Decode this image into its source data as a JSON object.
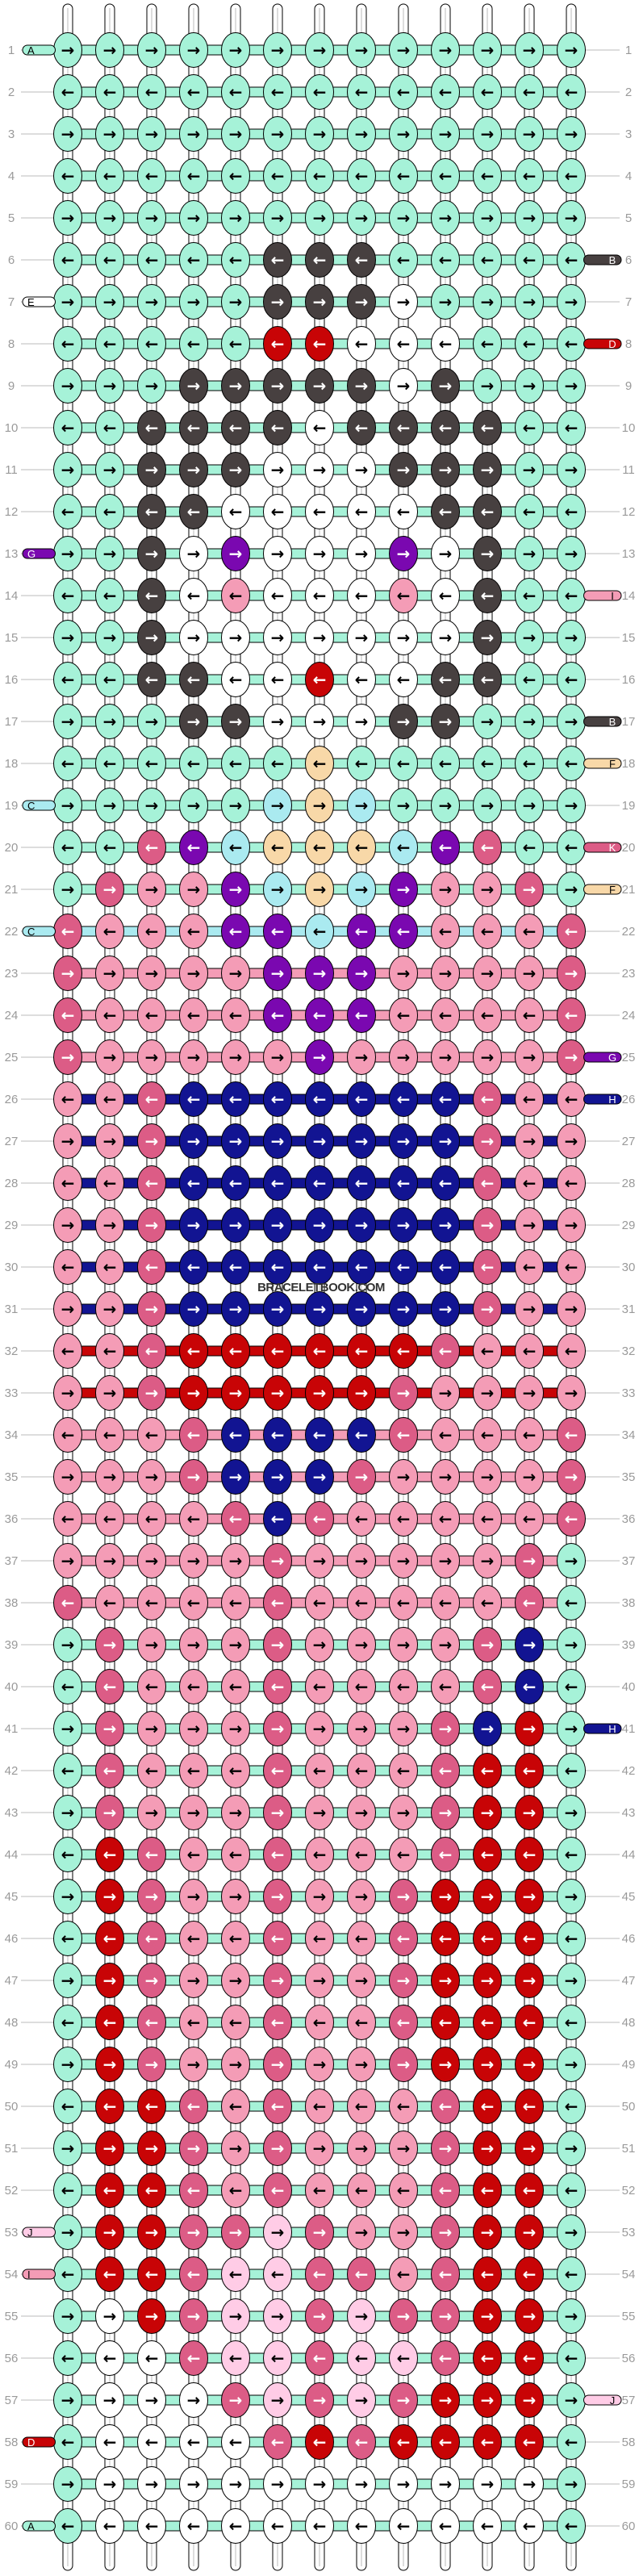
{
  "watermark": "BRACELETBOOK.COM",
  "colors": {
    "A": "#a6f2d8",
    "B": "#474040",
    "C": "#aaeaf0",
    "D": "#c80406",
    "E": "#ffffff",
    "F": "#f8d8a8",
    "G": "#7a08b0",
    "H": "#121492",
    "I": "#f49cb6",
    "J": "#ffcce6",
    "K": "#dc5c86"
  },
  "dark_colors": [
    "B",
    "D",
    "G",
    "H",
    "K"
  ],
  "left_labels": [
    {
      "row": 1,
      "letter": "A"
    },
    {
      "row": 7,
      "letter": "E"
    },
    {
      "row": 13,
      "letter": "G"
    },
    {
      "row": 19,
      "letter": "C"
    },
    {
      "row": 22,
      "letter": "C"
    },
    {
      "row": 53,
      "letter": "J"
    },
    {
      "row": 54,
      "letter": "I"
    },
    {
      "row": 58,
      "letter": "D"
    },
    {
      "row": 60,
      "letter": "A"
    }
  ],
  "right_labels": [
    {
      "row": 6,
      "letter": "B"
    },
    {
      "row": 8,
      "letter": "D"
    },
    {
      "row": 14,
      "letter": "I"
    },
    {
      "row": 17,
      "letter": "B"
    },
    {
      "row": 18,
      "letter": "F"
    },
    {
      "row": 20,
      "letter": "K"
    },
    {
      "row": 21,
      "letter": "F"
    },
    {
      "row": 25,
      "letter": "G"
    },
    {
      "row": 26,
      "letter": "H"
    },
    {
      "row": 41,
      "letter": "H"
    },
    {
      "row": 57,
      "letter": "J"
    }
  ],
  "rows": [
    {
      "number": "1",
      "knots": "AAAAAAAAAAAAA",
      "direction": "right",
      "bar": "A"
    },
    {
      "number": "2",
      "knots": "AAAAAAAAAAAAA",
      "direction": "left",
      "bar": "A"
    },
    {
      "number": "3",
      "knots": "AAAAAAAAAAAAA",
      "direction": "right",
      "bar": "A"
    },
    {
      "number": "4",
      "knots": "AAAAAAAAAAAAA",
      "direction": "left",
      "bar": "A"
    },
    {
      "number": "5",
      "knots": "AAAAAAAAAAAAA",
      "direction": "right",
      "bar": "A"
    },
    {
      "number": "6",
      "knots": "AAAAABBBAAAAA",
      "direction": "left",
      "bar": "A"
    },
    {
      "number": "7",
      "knots": "AAAAABBBEAAAA",
      "direction": "right",
      "bar": "A"
    },
    {
      "number": "8",
      "knots": "AAAAADDEEEAAA",
      "direction": "left",
      "bar": "A"
    },
    {
      "number": "9",
      "knots": "AAABBBBBEBAAA",
      "direction": "right",
      "bar": "A"
    },
    {
      "number": "10",
      "knots": "AABBBBEBBBBAA",
      "direction": "left",
      "bar": "A"
    },
    {
      "number": "11",
      "knots": "AABBBEEEBBBAA",
      "direction": "right",
      "bar": "A"
    },
    {
      "number": "12",
      "knots": "AABBEEEEEBBAA",
      "direction": "left",
      "bar": "A"
    },
    {
      "number": "13",
      "knots": "AABEGEEEGEBAA",
      "direction": "right",
      "bar": "A"
    },
    {
      "number": "14",
      "knots": "AABEIEEEIEBAA",
      "direction": "left",
      "bar": "A"
    },
    {
      "number": "15",
      "knots": "AABEEEEEEEBAA",
      "direction": "right",
      "bar": "A"
    },
    {
      "number": "16",
      "knots": "AABBEEDEEBBAA",
      "direction": "left",
      "bar": "A"
    },
    {
      "number": "17",
      "knots": "AAABBEEEBBAAA",
      "direction": "right",
      "bar": "A"
    },
    {
      "number": "18",
      "knots": "AAAAAAFAAAAAA",
      "direction": "left",
      "bar": "A"
    },
    {
      "number": "19",
      "knots": "AAAAACFCAAAAA",
      "direction": "right",
      "bar": "A"
    },
    {
      "number": "20",
      "knots": "AAKGCFFFCGKAA",
      "direction": "left",
      "bar": "A"
    },
    {
      "number": "21",
      "knots": "AKIIGCFCGIIKA",
      "direction": "right",
      "bar": "A"
    },
    {
      "number": "22",
      "knots": "KIIIGGCGGIIIK",
      "direction": "left",
      "bar": "C"
    },
    {
      "number": "23",
      "knots": "KIIIIGGGIIIIK",
      "direction": "right",
      "bar": "I"
    },
    {
      "number": "24",
      "knots": "KIIIIGGGIIIIK",
      "direction": "left",
      "bar": "I"
    },
    {
      "number": "25",
      "knots": "KIIIIIGIIIIIK",
      "direction": "right",
      "bar": "I"
    },
    {
      "number": "26",
      "knots": "IIKHHHHHHHKII",
      "direction": "left",
      "bar": "H"
    },
    {
      "number": "27",
      "knots": "IIKHHHHHHHKII",
      "direction": "right",
      "bar": "H"
    },
    {
      "number": "28",
      "knots": "IIKHHHHHHHKII",
      "direction": "left",
      "bar": "H"
    },
    {
      "number": "29",
      "knots": "IIKHHHHHHHKII",
      "direction": "right",
      "bar": "H"
    },
    {
      "number": "30",
      "knots": "IIKHHHHHHHKII",
      "direction": "left",
      "bar": "H"
    },
    {
      "number": "31",
      "knots": "IIKHHHHHHHKII",
      "direction": "right",
      "bar": "H"
    },
    {
      "number": "32",
      "knots": "IIKDDDDDDKIII",
      "direction": "left",
      "bar": "D"
    },
    {
      "number": "33",
      "knots": "IIKDDDDDKIIII",
      "direction": "right",
      "bar": "D"
    },
    {
      "number": "34",
      "knots": "IIIKHHHHKIIIK",
      "direction": "left",
      "bar": "I"
    },
    {
      "number": "35",
      "knots": "IIIKHHHKIIIIK",
      "direction": "right",
      "bar": "I"
    },
    {
      "number": "36",
      "knots": "IIIIKHKIIIIIK",
      "direction": "left",
      "bar": "I"
    },
    {
      "number": "37",
      "knots": "IIIIIKIIIIIKA",
      "direction": "right",
      "bar": "I"
    },
    {
      "number": "38",
      "knots": "KIIIIKIIIIIKA",
      "direction": "left",
      "bar": "I"
    },
    {
      "number": "39",
      "knots": "AKIIIKIIIIKHA",
      "direction": "right",
      "bar": "A"
    },
    {
      "number": "40",
      "knots": "AKIIIKIIIIKHA",
      "direction": "left",
      "bar": "A"
    },
    {
      "number": "41",
      "knots": "AKIIIKIIIKHDA",
      "direction": "right",
      "bar": "A"
    },
    {
      "number": "42",
      "knots": "AKIIIKIIIKDDA",
      "direction": "left",
      "bar": "A"
    },
    {
      "number": "43",
      "knots": "AKIIIKIIIKDDA",
      "direction": "right",
      "bar": "A"
    },
    {
      "number": "44",
      "knots": "ADKIIKIIIKDDA",
      "direction": "left",
      "bar": "A"
    },
    {
      "number": "45",
      "knots": "ADKIIKIIKDDDA",
      "direction": "right",
      "bar": "A"
    },
    {
      "number": "46",
      "knots": "ADKIIKIIKDDDA",
      "direction": "left",
      "bar": "A"
    },
    {
      "number": "47",
      "knots": "ADKIIKIIKDDDA",
      "direction": "right",
      "bar": "A"
    },
    {
      "number": "48",
      "knots": "ADKIIKIIKDDDA",
      "direction": "left",
      "bar": "A"
    },
    {
      "number": "49",
      "knots": "ADKIIKIIKDDDA",
      "direction": "right",
      "bar": "A"
    },
    {
      "number": "50",
      "knots": "ADDKIKIIIKDDA",
      "direction": "left",
      "bar": "A"
    },
    {
      "number": "51",
      "knots": "ADDKIKIIIKDDA",
      "direction": "right",
      "bar": "A"
    },
    {
      "number": "52",
      "knots": "ADDKIKIIIKDDA",
      "direction": "left",
      "bar": "A"
    },
    {
      "number": "53",
      "knots": "ADDKKJKIIKDDA",
      "direction": "right",
      "bar": "A"
    },
    {
      "number": "54",
      "knots": "ADDKJJKKIKDDA",
      "direction": "left",
      "bar": "A"
    },
    {
      "number": "55",
      "knots": "AEDKJJKJKKDDA",
      "direction": "right",
      "bar": "A"
    },
    {
      "number": "56",
      "knots": "AEEKJJKJJKDDA",
      "direction": "left",
      "bar": "A"
    },
    {
      "number": "57",
      "knots": "AEEEKJKJKDDDA",
      "direction": "right",
      "bar": "A"
    },
    {
      "number": "58",
      "knots": "AEEEEKDKDDDDA",
      "direction": "left",
      "bar": "A"
    },
    {
      "number": "59",
      "knots": "AEEEEEEEEEEEA",
      "direction": "right",
      "bar": "A"
    },
    {
      "number": "60",
      "knots": "AEEEEEEEEEEEA",
      "direction": "left",
      "bar": "A"
    }
  ]
}
